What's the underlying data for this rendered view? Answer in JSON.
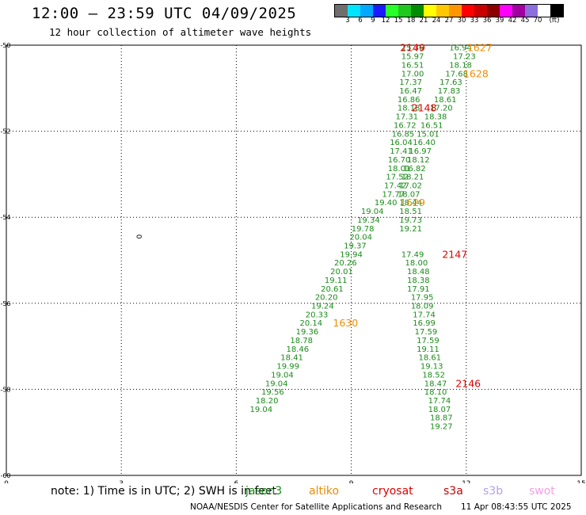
{
  "header": {
    "title": "12:00 — 23:59 UTC 04/09/2025",
    "subtitle": "12 hour collection of altimeter wave heights"
  },
  "colorbar": {
    "colors": [
      "#6e6e6e",
      "#00e5ff",
      "#00a8ff",
      "#1a1aff",
      "#28ff28",
      "#1ec81e",
      "#008c00",
      "#ffff00",
      "#ffc800",
      "#ff9600",
      "#ff0000",
      "#c80000",
      "#8c0000",
      "#ff00ff",
      "#a000a0",
      "#8c6edc",
      "#ffffff",
      "#000000"
    ],
    "labels": [
      "3",
      "6",
      "9",
      "12",
      "15",
      "18",
      "21",
      "24",
      "27",
      "30",
      "33",
      "36",
      "39",
      "42",
      "45",
      "70",
      "(ft)"
    ]
  },
  "footer": {
    "note": "note:  1) Time is in UTC; 2) SWH is in feet",
    "credit": "NOAA/NESDIS Center for Satellite Applications and Research",
    "timestamp": "11 Apr 08:43:55 UTC 2025"
  },
  "legend": [
    {
      "name": "jason3",
      "color": "#1a8c1a"
    },
    {
      "name": "altiko",
      "color": "#f08c00"
    },
    {
      "name": "cryosat",
      "color": "#e00000"
    },
    {
      "name": "s3a",
      "color": "#c80000"
    },
    {
      "name": "s3b",
      "color": "#b4a0e6"
    },
    {
      "name": "swot",
      "color": "#f0a0e6"
    }
  ],
  "chart_data": {
    "type": "scatter",
    "title": "12:00 — 23:59 UTC 04/09/2025",
    "subtitle": "12 hour collection of altimeter wave heights",
    "xlabel": "",
    "ylabel": "",
    "xlim": [
      0,
      15
    ],
    "ylim": [
      -60,
      -50
    ],
    "xticks": [
      "0",
      "3",
      "6",
      "9",
      "12",
      "15"
    ],
    "yticks": [
      "-50",
      "-52",
      "-54",
      "-56",
      "-58",
      "-60"
    ],
    "grid": true,
    "point_color": "#1a8c1a",
    "contour_label": {
      "x": 3.4,
      "y": -54.45,
      "text": "0"
    },
    "series": [
      {
        "track": "descending-east",
        "points": [
          {
            "x": 10.6,
            "y": -50.05,
            "v": "15.36"
          },
          {
            "x": 10.6,
            "y": -50.25,
            "v": "15.97"
          },
          {
            "x": 10.6,
            "y": -50.45,
            "v": "16.51"
          },
          {
            "x": 10.6,
            "y": -50.65,
            "v": "17.00"
          },
          {
            "x": 10.55,
            "y": -50.85,
            "v": "17.37"
          },
          {
            "x": 10.55,
            "y": -51.05,
            "v": "16.47"
          },
          {
            "x": 10.5,
            "y": -51.25,
            "v": "16.86"
          },
          {
            "x": 10.5,
            "y": -51.45,
            "v": "18.18"
          },
          {
            "x": 10.45,
            "y": -51.65,
            "v": "17.31"
          },
          {
            "x": 10.4,
            "y": -51.85,
            "v": "16.72"
          },
          {
            "x": 10.35,
            "y": -52.05,
            "v": "16.85"
          },
          {
            "x": 10.3,
            "y": -52.25,
            "v": "16.04"
          },
          {
            "x": 10.3,
            "y": -52.45,
            "v": "17.41"
          },
          {
            "x": 10.25,
            "y": -52.65,
            "v": "16.70"
          },
          {
            "x": 10.25,
            "y": -52.85,
            "v": "18.01"
          },
          {
            "x": 10.2,
            "y": -53.05,
            "v": "17.52"
          },
          {
            "x": 10.15,
            "y": -53.25,
            "v": "17.42"
          },
          {
            "x": 10.1,
            "y": -53.45,
            "v": "17.77"
          },
          {
            "x": 9.9,
            "y": -53.65,
            "v": "19.40"
          },
          {
            "x": 9.55,
            "y": -53.85,
            "v": "19.04"
          },
          {
            "x": 9.45,
            "y": -54.05,
            "v": "19.34"
          },
          {
            "x": 9.3,
            "y": -54.25,
            "v": "19.78"
          },
          {
            "x": 9.25,
            "y": -54.45,
            "v": "20.04"
          },
          {
            "x": 9.1,
            "y": -54.65,
            "v": "19.37"
          },
          {
            "x": 9.0,
            "y": -54.85,
            "v": "19.94"
          },
          {
            "x": 8.85,
            "y": -55.05,
            "v": "20.26"
          },
          {
            "x": 8.75,
            "y": -55.25,
            "v": "20.01"
          },
          {
            "x": 8.6,
            "y": -55.45,
            "v": "19.11"
          },
          {
            "x": 8.5,
            "y": -55.65,
            "v": "20.61"
          },
          {
            "x": 8.35,
            "y": -55.85,
            "v": "20.20"
          },
          {
            "x": 8.25,
            "y": -56.05,
            "v": "19.24"
          },
          {
            "x": 8.1,
            "y": -56.25,
            "v": "20.33"
          },
          {
            "x": 7.95,
            "y": -56.45,
            "v": "20.14"
          },
          {
            "x": 7.85,
            "y": -56.65,
            "v": "19.36"
          },
          {
            "x": 7.7,
            "y": -56.85,
            "v": "18.78"
          },
          {
            "x": 7.6,
            "y": -57.05,
            "v": "18.46"
          },
          {
            "x": 7.45,
            "y": -57.25,
            "v": "18.41"
          },
          {
            "x": 7.35,
            "y": -57.45,
            "v": "19.99"
          },
          {
            "x": 7.2,
            "y": -57.65,
            "v": "19.04"
          },
          {
            "x": 7.05,
            "y": -57.85,
            "v": "19.04"
          },
          {
            "x": 6.95,
            "y": -58.05,
            "v": "19.56"
          },
          {
            "x": 6.8,
            "y": -58.25,
            "v": "18.20"
          },
          {
            "x": 6.65,
            "y": -58.45,
            "v": "19.04"
          }
        ]
      },
      {
        "track": "descending-west",
        "points": [
          {
            "x": 11.85,
            "y": -50.05,
            "v": "16.94"
          },
          {
            "x": 11.95,
            "y": -50.25,
            "v": "17.23"
          },
          {
            "x": 11.85,
            "y": -50.45,
            "v": "18.18"
          },
          {
            "x": 11.75,
            "y": -50.65,
            "v": "17.68"
          },
          {
            "x": 11.6,
            "y": -50.85,
            "v": "17.63"
          },
          {
            "x": 11.55,
            "y": -51.05,
            "v": "17.83"
          },
          {
            "x": 11.45,
            "y": -51.25,
            "v": "18.61"
          },
          {
            "x": 11.35,
            "y": -51.45,
            "v": "17.20"
          },
          {
            "x": 11.2,
            "y": -51.65,
            "v": "18.38"
          },
          {
            "x": 11.1,
            "y": -51.85,
            "v": "16.51"
          },
          {
            "x": 11.0,
            "y": -52.05,
            "v": "15.01"
          },
          {
            "x": 10.9,
            "y": -52.25,
            "v": "16.40"
          },
          {
            "x": 10.8,
            "y": -52.45,
            "v": "16.97"
          },
          {
            "x": 10.75,
            "y": -52.65,
            "v": "18.12"
          },
          {
            "x": 10.65,
            "y": -52.85,
            "v": "16.82"
          },
          {
            "x": 10.6,
            "y": -53.05,
            "v": "18.21"
          },
          {
            "x": 10.55,
            "y": -53.25,
            "v": "17.02"
          },
          {
            "x": 10.5,
            "y": -53.45,
            "v": "18.07"
          },
          {
            "x": 10.55,
            "y": -53.65,
            "v": "18.44"
          },
          {
            "x": 10.55,
            "y": -53.85,
            "v": "18.51"
          },
          {
            "x": 10.55,
            "y": -54.05,
            "v": "19.73"
          },
          {
            "x": 10.55,
            "y": -54.25,
            "v": "19.21"
          },
          {
            "x": 10.6,
            "y": -54.85,
            "v": "17.49"
          },
          {
            "x": 10.7,
            "y": -55.05,
            "v": "18.00"
          },
          {
            "x": 10.75,
            "y": -55.25,
            "v": "18.48"
          },
          {
            "x": 10.75,
            "y": -55.45,
            "v": "18.38"
          },
          {
            "x": 10.75,
            "y": -55.65,
            "v": "17.91"
          },
          {
            "x": 10.85,
            "y": -55.85,
            "v": "17.95"
          },
          {
            "x": 10.85,
            "y": -56.05,
            "v": "18.09"
          },
          {
            "x": 10.9,
            "y": -56.25,
            "v": "17.74"
          },
          {
            "x": 10.9,
            "y": -56.45,
            "v": "16.99"
          },
          {
            "x": 10.95,
            "y": -56.65,
            "v": "17.59"
          },
          {
            "x": 11.0,
            "y": -56.85,
            "v": "17.59"
          },
          {
            "x": 11.0,
            "y": -57.05,
            "v": "19.11"
          },
          {
            "x": 11.05,
            "y": -57.25,
            "v": "18.61"
          },
          {
            "x": 11.1,
            "y": -57.45,
            "v": "19.13"
          },
          {
            "x": 11.15,
            "y": -57.65,
            "v": "18.52"
          },
          {
            "x": 11.2,
            "y": -57.85,
            "v": "18.47"
          },
          {
            "x": 11.2,
            "y": -58.05,
            "v": "18.10"
          },
          {
            "x": 11.3,
            "y": -58.25,
            "v": "17.74"
          },
          {
            "x": 11.3,
            "y": -58.45,
            "v": "18.07"
          },
          {
            "x": 11.35,
            "y": -58.65,
            "v": "18.87"
          },
          {
            "x": 11.35,
            "y": -58.85,
            "v": "19.27"
          }
        ]
      }
    ],
    "time_labels": [
      {
        "x": 10.6,
        "y": -50.05,
        "text": "2149",
        "color": "#e00000"
      },
      {
        "x": 12.35,
        "y": -50.05,
        "text": "1627",
        "color": "#f08c00"
      },
      {
        "x": 12.25,
        "y": -50.65,
        "text": "1628",
        "color": "#f08c00"
      },
      {
        "x": 10.9,
        "y": -51.45,
        "text": "2148",
        "color": "#e00000"
      },
      {
        "x": 10.6,
        "y": -53.65,
        "text": "1629",
        "color": "#f08c00"
      },
      {
        "x": 11.7,
        "y": -54.85,
        "text": "2147",
        "color": "#e00000"
      },
      {
        "x": 8.85,
        "y": -56.45,
        "text": "1630",
        "color": "#f08c00"
      },
      {
        "x": 12.05,
        "y": -57.85,
        "text": "2146",
        "color": "#e00000"
      }
    ]
  }
}
